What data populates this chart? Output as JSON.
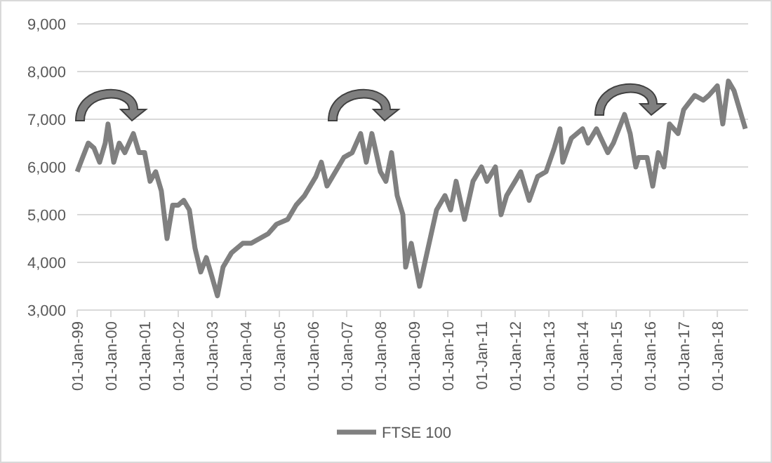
{
  "chart_data": {
    "type": "line",
    "x": [
      "1999-01",
      "1999-03",
      "1999-05",
      "1999-07",
      "1999-09",
      "1999-11",
      "1999-12",
      "2000-02",
      "2000-04",
      "2000-06",
      "2000-09",
      "2000-11",
      "2001-01",
      "2001-03",
      "2001-05",
      "2001-07",
      "2001-09",
      "2001-11",
      "2002-01",
      "2002-03",
      "2002-05",
      "2002-07",
      "2002-09",
      "2002-11",
      "2003-01",
      "2003-03",
      "2003-05",
      "2003-08",
      "2003-12",
      "2004-03",
      "2004-06",
      "2004-09",
      "2004-12",
      "2005-04",
      "2005-07",
      "2005-10",
      "2006-02",
      "2006-04",
      "2006-06",
      "2006-09",
      "2006-12",
      "2007-03",
      "2007-06",
      "2007-08",
      "2007-10",
      "2008-01",
      "2008-03",
      "2008-05",
      "2008-07",
      "2008-09",
      "2008-10",
      "2008-12",
      "2009-03",
      "2009-06",
      "2009-09",
      "2009-12",
      "2010-02",
      "2010-04",
      "2010-07",
      "2010-10",
      "2011-01",
      "2011-03",
      "2011-06",
      "2011-08",
      "2011-10",
      "2012-01",
      "2012-03",
      "2012-06",
      "2012-09",
      "2012-12",
      "2013-03",
      "2013-05",
      "2013-06",
      "2013-09",
      "2014-01",
      "2014-03",
      "2014-06",
      "2014-10",
      "2014-12",
      "2015-04",
      "2015-06",
      "2015-08",
      "2015-09",
      "2015-12",
      "2016-02",
      "2016-04",
      "2016-06",
      "2016-08",
      "2016-11",
      "2017-01",
      "2017-05",
      "2017-08",
      "2017-10",
      "2018-01",
      "2018-03",
      "2018-05",
      "2018-07",
      "2018-10",
      "2018-11"
    ],
    "series": [
      {
        "name": "FTSE 100",
        "color": "#808080",
        "values": [
          5900,
          6200,
          6500,
          6400,
          6100,
          6500,
          6900,
          6100,
          6500,
          6300,
          6700,
          6300,
          6300,
          5700,
          5900,
          5500,
          4500,
          5200,
          5200,
          5300,
          5100,
          4300,
          3800,
          4100,
          3700,
          3300,
          3900,
          4200,
          4400,
          4400,
          4500,
          4600,
          4800,
          4900,
          5200,
          5400,
          5800,
          6100,
          5600,
          5900,
          6200,
          6300,
          6700,
          6100,
          6700,
          5900,
          5700,
          6300,
          5400,
          5000,
          3900,
          4400,
          3500,
          4300,
          5100,
          5400,
          5100,
          5700,
          4900,
          5700,
          6000,
          5700,
          6000,
          5000,
          5400,
          5700,
          5900,
          5300,
          5800,
          5900,
          6400,
          6800,
          6100,
          6600,
          6800,
          6500,
          6800,
          6300,
          6500,
          7100,
          6700,
          6000,
          6200,
          6200,
          5600,
          6300,
          6000,
          6900,
          6700,
          7200,
          7500,
          7400,
          7500,
          7700,
          6900,
          7800,
          7600,
          7000,
          6800
        ]
      }
    ],
    "xlim": [
      "1999-01-01",
      "2018-12-01"
    ],
    "xticks": [
      {
        "value": "1999-01-01",
        "label": "01-Jan-99"
      },
      {
        "value": "2000-01-01",
        "label": "01-Jan-00"
      },
      {
        "value": "2001-01-01",
        "label": "01-Jan-01"
      },
      {
        "value": "2002-01-01",
        "label": "01-Jan-02"
      },
      {
        "value": "2003-01-01",
        "label": "01-Jan-03"
      },
      {
        "value": "2004-01-01",
        "label": "01-Jan-04"
      },
      {
        "value": "2005-01-01",
        "label": "01-Jan-05"
      },
      {
        "value": "2006-01-01",
        "label": "01-Jan-06"
      },
      {
        "value": "2007-01-01",
        "label": "01-Jan-07"
      },
      {
        "value": "2008-01-01",
        "label": "01-Jan-08"
      },
      {
        "value": "2009-01-01",
        "label": "01-Jan-09"
      },
      {
        "value": "2010-01-01",
        "label": "01-Jan-10"
      },
      {
        "value": "2011-01-01",
        "label": "01-Jan-11"
      },
      {
        "value": "2012-01-01",
        "label": "01-Jan-12"
      },
      {
        "value": "2013-01-01",
        "label": "01-Jan-13"
      },
      {
        "value": "2014-01-01",
        "label": "01-Jan-14"
      },
      {
        "value": "2015-01-01",
        "label": "01-Jan-15"
      },
      {
        "value": "2016-01-01",
        "label": "01-Jan-16"
      },
      {
        "value": "2017-01-01",
        "label": "01-Jan-17"
      },
      {
        "value": "2018-01-01",
        "label": "01-Jan-18"
      }
    ],
    "ylim": [
      3000,
      9000
    ],
    "yticks": [
      {
        "value": 3000,
        "label": "3,000"
      },
      {
        "value": 4000,
        "label": "4,000"
      },
      {
        "value": 5000,
        "label": "5,000"
      },
      {
        "value": 6000,
        "label": "6,000"
      },
      {
        "value": 7000,
        "label": "7,000"
      },
      {
        "value": 8000,
        "label": "8,000"
      },
      {
        "value": 9000,
        "label": "9,000"
      }
    ],
    "grid": "y",
    "legend": "bottom",
    "marker": "none",
    "line_style": "solid"
  }
}
